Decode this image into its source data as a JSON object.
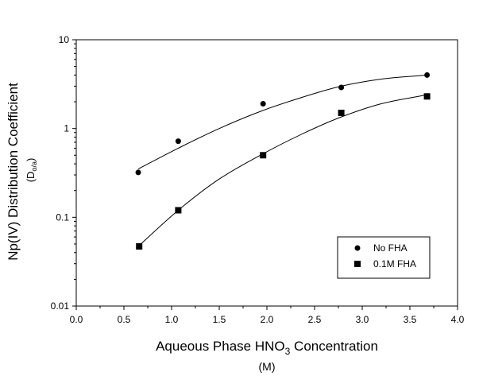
{
  "chart_data": {
    "type": "scatter",
    "xlabel": {
      "pre": "Aqueous Phase HNO",
      "sub": "3",
      "post": " Concentration"
    },
    "xunit": "(M)",
    "ylabel": "Np(IV) Distribution Coefficient",
    "ysublabel": {
      "main": "D",
      "sub": "o/a"
    },
    "xlim": [
      0.0,
      4.0
    ],
    "ylim": [
      0.01,
      10
    ],
    "yscale": "log",
    "xticks": [
      0.0,
      0.5,
      1.0,
      1.5,
      2.0,
      2.5,
      3.0,
      3.5,
      4.0
    ],
    "xtick_labels": [
      "0.0",
      "0.5",
      "1.0",
      "1.5",
      "2.0",
      "2.5",
      "3.0",
      "3.5",
      "4.0"
    ],
    "yticks": [
      0.01,
      0.1,
      1,
      10
    ],
    "ytick_labels": [
      "0.01",
      "0.1",
      "1",
      "10"
    ],
    "grid": false,
    "legend_position": "bottom-right",
    "series": [
      {
        "name": "No FHA",
        "marker": "circle",
        "x": [
          0.65,
          1.07,
          1.96,
          2.78,
          3.68
        ],
        "y": [
          0.32,
          0.72,
          1.9,
          2.9,
          4.0
        ],
        "fit": {
          "x": [
            0.65,
            1.07,
            1.5,
            1.96,
            2.4,
            2.78,
            3.2,
            3.68
          ],
          "y": [
            0.35,
            0.6,
            1.0,
            1.6,
            2.3,
            3.0,
            3.6,
            4.0
          ]
        }
      },
      {
        "name": "0.1M FHA",
        "marker": "square",
        "x": [
          0.66,
          1.07,
          1.96,
          2.78,
          3.68
        ],
        "y": [
          0.047,
          0.12,
          0.5,
          1.5,
          2.3
        ],
        "fit": {
          "x": [
            0.66,
            1.07,
            1.5,
            1.96,
            2.4,
            2.78,
            3.2,
            3.68
          ],
          "y": [
            0.048,
            0.12,
            0.27,
            0.52,
            0.9,
            1.35,
            1.9,
            2.4
          ]
        }
      }
    ]
  }
}
